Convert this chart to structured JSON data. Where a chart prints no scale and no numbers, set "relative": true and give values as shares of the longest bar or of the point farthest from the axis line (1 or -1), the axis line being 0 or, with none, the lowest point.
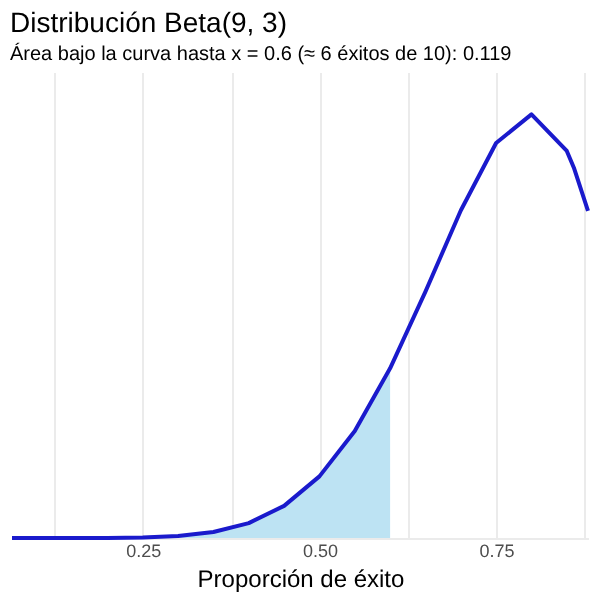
{
  "chart_data": {
    "type": "line",
    "title": "Distribución Beta(9, 3)",
    "subtitle": "Área bajo la curva hasta x = 0.6 (≈ 6 éxitos de 10): 0.119",
    "xlabel": "Proporción de éxito",
    "relative": true,
    "xlim": [
      0.065,
      0.88
    ],
    "xticks": [
      {
        "value": 0.125,
        "label": null
      },
      0.25,
      {
        "value": 0.375,
        "label": null
      },
      {
        "value": 0.5,
        "label": "0.50"
      },
      {
        "value": 0.625,
        "label": null
      },
      0.75,
      {
        "value": 0.875,
        "label": null
      }
    ],
    "grid": "x",
    "line_style": "solid",
    "marker": "none",
    "series": [
      {
        "type": "area",
        "color": "#bde3f3",
        "x": [
          0.065,
          0.1,
          0.15,
          0.2,
          0.25,
          0.3,
          0.35,
          0.4,
          0.45,
          0.5,
          0.55,
          0.6
        ],
        "values": [
          0,
          0,
          0,
          0.0002,
          0.0013,
          0.0048,
          0.0143,
          0.0352,
          0.0759,
          0.1455,
          0.2526,
          0.4005
        ]
      },
      {
        "type": "line",
        "color": "#1a1acc",
        "x": [
          0.065,
          0.1,
          0.15,
          0.2,
          0.25,
          0.3,
          0.35,
          0.4,
          0.45,
          0.5,
          0.55,
          0.6,
          0.65,
          0.7,
          0.75,
          0.8,
          0.85,
          0.86,
          0.88
        ],
        "values": [
          0,
          0,
          0,
          0.0002,
          0.0013,
          0.0048,
          0.0143,
          0.0352,
          0.0759,
          0.1455,
          0.2526,
          0.4005,
          0.5815,
          0.7731,
          0.9324,
          1,
          0.9136,
          0.874,
          0.772
        ]
      }
    ]
  }
}
